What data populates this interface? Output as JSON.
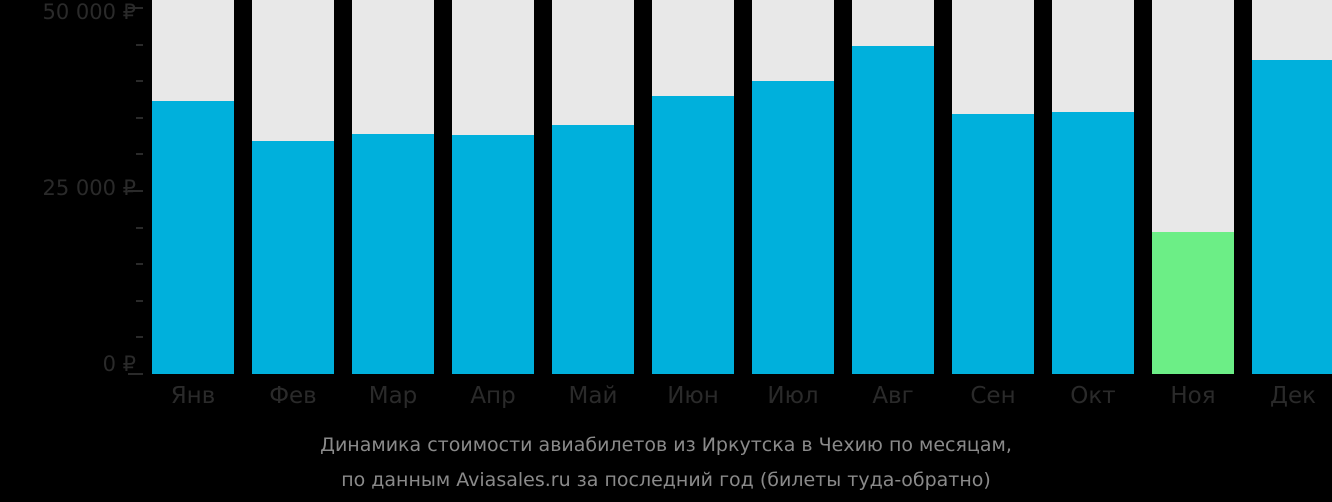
{
  "chart_data": {
    "type": "bar",
    "title": "Динамика стоимости авиабилетов из Иркутска в Чехию по месяцам,",
    "subtitle": "по данным Aviasales.ru за последний год (билеты туда-обратно)",
    "xlabel": "",
    "ylabel": "",
    "ylim": [
      0,
      50000
    ],
    "y_ticks": [
      "0 ₽",
      "25 000 ₽",
      "50 000 ₽"
    ],
    "categories": [
      "Янв",
      "Фев",
      "Мар",
      "Апр",
      "Май",
      "Июн",
      "Июл",
      "Авг",
      "Сен",
      "Окт",
      "Ноя",
      "Дек"
    ],
    "values": [
      37300,
      31800,
      32800,
      32700,
      34000,
      38000,
      40000,
      44800,
      35500,
      35800,
      19400,
      42900
    ],
    "highlight_index": 10,
    "colors": {
      "bar": "#00b0dc",
      "highlight": "#6cee86",
      "background_bar": "#e8e8e8",
      "page": "#000000"
    },
    "grid": false,
    "legend": null
  },
  "axis": {
    "y_top": "50 000 ₽",
    "y_mid": "25 000 ₽",
    "y_zero": "0 ₽"
  },
  "caption": {
    "line1": "Динамика стоимости авиабилетов из Иркутска в Чехию по месяцам,",
    "line2": "по данным Aviasales.ru за последний год (билеты туда-обратно)"
  }
}
